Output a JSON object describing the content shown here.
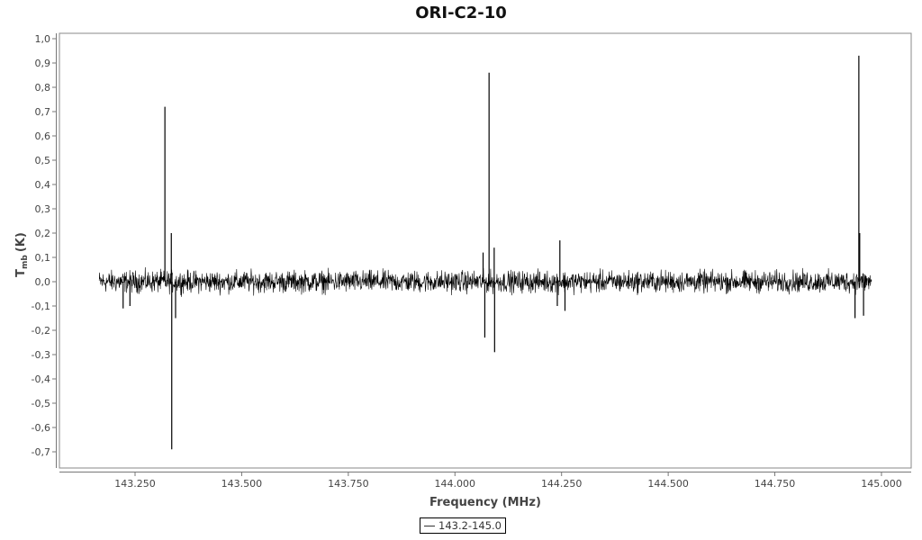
{
  "chart_data": {
    "type": "line",
    "title": "ORI-C2-10",
    "xlabel": "Frequency (MHz)",
    "ylabel_main": "T",
    "ylabel_sub": "mb",
    "ylabel_unit": "(K)",
    "xlim": [
      143.08,
      145.07
    ],
    "ylim": [
      -0.7,
      1.0
    ],
    "x_ticks": [
      "143.250",
      "143.500",
      "143.750",
      "144.000",
      "144.250",
      "144.500",
      "144.750",
      "145.000"
    ],
    "x_tick_values": [
      143.25,
      143.5,
      143.75,
      144.0,
      144.25,
      144.5,
      144.75,
      145.0
    ],
    "y_ticks": [
      "1,0",
      "0,9",
      "0,8",
      "0,7",
      "0,6",
      "0,5",
      "0,4",
      "0,3",
      "0,2",
      "0,1",
      "0,0",
      "-0,1",
      "-0,2",
      "-0,3",
      "-0,4",
      "-0,5",
      "-0,6",
      "-0,7"
    ],
    "y_tick_values": [
      1.0,
      0.9,
      0.8,
      0.7,
      0.6,
      0.5,
      0.4,
      0.3,
      0.2,
      0.1,
      0.0,
      -0.1,
      -0.2,
      -0.3,
      -0.4,
      -0.5,
      -0.6,
      -0.7
    ],
    "grid": false,
    "legend_position": "bottom-center",
    "series": [
      {
        "name": "143.2-145.0",
        "color": "#000000",
        "x_range": [
          143.166,
          144.977
        ],
        "baseline_noise_amplitude": 0.04,
        "spikes": [
          {
            "x": 143.32,
            "y": 0.72
          },
          {
            "x": 143.335,
            "y": 0.2
          },
          {
            "x": 143.336,
            "y": -0.69
          },
          {
            "x": 143.345,
            "y": -0.15
          },
          {
            "x": 143.222,
            "y": -0.11
          },
          {
            "x": 143.238,
            "y": -0.1
          },
          {
            "x": 144.066,
            "y": 0.12
          },
          {
            "x": 144.07,
            "y": -0.23
          },
          {
            "x": 144.08,
            "y": 0.86
          },
          {
            "x": 144.092,
            "y": 0.14
          },
          {
            "x": 144.093,
            "y": -0.29
          },
          {
            "x": 144.246,
            "y": 0.17
          },
          {
            "x": 144.24,
            "y": -0.1
          },
          {
            "x": 144.258,
            "y": -0.12
          },
          {
            "x": 144.938,
            "y": -0.15
          },
          {
            "x": 144.947,
            "y": 0.93
          },
          {
            "x": 144.949,
            "y": 0.2
          },
          {
            "x": 144.958,
            "y": -0.14
          }
        ]
      }
    ]
  }
}
